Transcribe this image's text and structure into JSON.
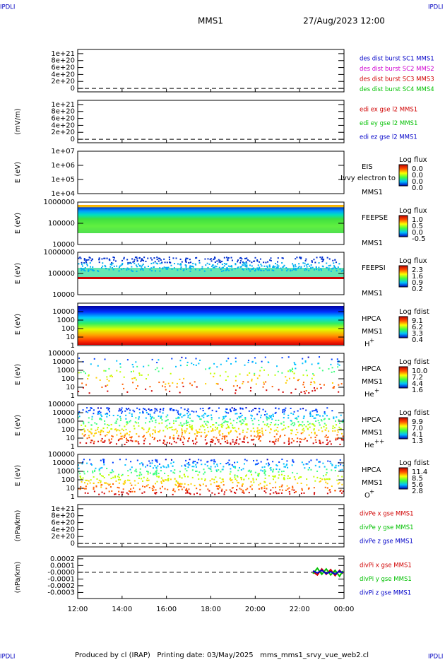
{
  "corner_label": "IPDLI",
  "title": "MMS1",
  "date": "27/Aug/2023 12:00",
  "footer": "Produced by cl (IRAP)   Printing date: 03/May/2025   mms_mms1_srvy_vue_web2.cl",
  "xlim": [
    12,
    24
  ],
  "xticks": [
    {
      "value": 12,
      "label": "12:00"
    },
    {
      "value": 14,
      "label": "14:00"
    },
    {
      "value": 16,
      "label": "16:00"
    },
    {
      "value": 18,
      "label": "18:00"
    },
    {
      "value": 20,
      "label": "20:00"
    },
    {
      "value": 22,
      "label": "22:00"
    },
    {
      "value": 24,
      "label": "00:00"
    }
  ],
  "chart_data": [
    {
      "type": "line",
      "ylim": [
        -1e+20,
        1.12e+21
      ],
      "yticks": [
        {
          "value": 1e+21,
          "label": "1e+21"
        },
        {
          "value": 8e+20,
          "label": "8e+20"
        },
        {
          "value": 6e+20,
          "label": "6e+20"
        },
        {
          "value": 4e+20,
          "label": "4e+20"
        },
        {
          "value": 2e+20,
          "label": "2e+20"
        },
        0
      ],
      "series": [
        {
          "name": "des dist burst SC1 MMS1",
          "color": "#0000c8"
        },
        {
          "name": "des dist burst SC2 MMS2",
          "color": "#d000d0"
        },
        {
          "name": "des dist burst SC3 MMS3",
          "color": "#d00000"
        },
        {
          "name": "des dist burst SC4 MMS4",
          "color": "#00c000"
        }
      ]
    },
    {
      "type": "line",
      "ylabel": "(mV/m)",
      "ylim": [
        -1e+20,
        1.12e+21
      ],
      "yticks": [
        {
          "value": 1e+21,
          "label": "1e+21"
        },
        {
          "value": 8e+20,
          "label": "8e+20"
        },
        {
          "value": 6e+20,
          "label": "6e+20"
        },
        {
          "value": 4e+20,
          "label": "4e+20"
        },
        {
          "value": 2e+20,
          "label": "2e+20"
        },
        0
      ],
      "series": [
        {
          "name": "edi ex gse l2 MMS1",
          "color": "#d00000"
        },
        {
          "name": "edi ey gse l2 MMS1",
          "color": "#00c000"
        },
        {
          "name": "edi ez gse l2 MMS1",
          "color": "#0000c8"
        }
      ]
    },
    {
      "type": "spectrogram",
      "ylabel": "E (eV)",
      "log": true,
      "ylim": [
        10000,
        10000000
      ],
      "yticks": [
        {
          "value": 10000000,
          "label": "1e+07"
        },
        {
          "value": 1000000,
          "label": "1e+06"
        },
        {
          "value": 100000,
          "label": "1e+05"
        },
        {
          "value": 10000,
          "label": "1e+04"
        }
      ],
      "labels": [
        "EIS",
        "MMS1"
      ],
      "note": "Ivvy electron to",
      "colorbar_title": "Log flux",
      "colorbar_labels": [
        "0.0",
        "0.0",
        "0.0",
        "0.0"
      ]
    },
    {
      "type": "spectrogram",
      "ylabel": "E (eV)",
      "log": true,
      "ylim": [
        10000,
        1000000
      ],
      "yticks": [
        1000000,
        100000,
        10000
      ],
      "labels": [
        "FEEPSE",
        "MMS1"
      ],
      "colorbar_title": "Log flux",
      "colorbar_labels": [
        "1.0",
        "0.5",
        "0.0",
        "-0.5"
      ]
    },
    {
      "type": "spectrogram",
      "ylabel": "E (eV)",
      "log": true,
      "ylim": [
        10000,
        1000000
      ],
      "yticks": [
        1000000,
        100000,
        10000
      ],
      "labels": [
        "FEEPSI",
        "MMS1"
      ],
      "colorbar_title": "Log flux",
      "colorbar_labels": [
        "2.3",
        "1.6",
        "0.9",
        "0.2"
      ]
    },
    {
      "type": "spectrogram",
      "ylabel": "E (eV)",
      "log": true,
      "ylim": [
        1,
        100000
      ],
      "yticks": [
        10000,
        1000,
        100,
        10,
        1
      ],
      "labels": [
        "HPCA",
        "MMS1"
      ],
      "species": [
        "H",
        "+"
      ],
      "colorbar_title": "Log fdist",
      "colorbar_labels": [
        "9.1",
        "6.2",
        "3.3",
        "0.4"
      ]
    },
    {
      "type": "spectrogram",
      "ylabel": "E (eV)",
      "log": true,
      "ylim": [
        1,
        100000
      ],
      "yticks": [
        100000,
        10000,
        1000,
        100,
        10,
        1
      ],
      "labels": [
        "HPCA",
        "MMS1"
      ],
      "species": [
        "He",
        "+"
      ],
      "colorbar_title": "Log fdist",
      "colorbar_labels": [
        "10.0",
        "7.2",
        "4.4",
        "1.6"
      ]
    },
    {
      "type": "spectrogram",
      "ylabel": "E (eV)",
      "log": true,
      "ylim": [
        1,
        100000
      ],
      "yticks": [
        100000,
        10000,
        1000,
        100,
        10,
        1
      ],
      "labels": [
        "HPCA",
        "MMS1"
      ],
      "species": [
        "He",
        "++"
      ],
      "colorbar_title": "Log fdist",
      "colorbar_labels": [
        "9.9",
        "7.0",
        "4.1",
        "1.3"
      ]
    },
    {
      "type": "spectrogram",
      "ylabel": "E (eV)",
      "log": true,
      "ylim": [
        1,
        100000
      ],
      "yticks": [
        100000,
        10000,
        1000,
        100,
        10,
        1
      ],
      "labels": [
        "HPCA",
        "MMS1"
      ],
      "species": [
        "O",
        "+"
      ],
      "colorbar_title": "Log fdist",
      "colorbar_labels": [
        "11.4",
        "8.5",
        "5.6",
        "2.8"
      ]
    },
    {
      "type": "line",
      "ylabel": "(nPa/km)",
      "ylim": [
        -1e+20,
        1.12e+21
      ],
      "yticks": [
        {
          "value": 1e+21,
          "label": "1e+21"
        },
        {
          "value": 8e+20,
          "label": "8e+20"
        },
        {
          "value": 6e+20,
          "label": "6e+20"
        },
        {
          "value": 4e+20,
          "label": "4e+20"
        },
        {
          "value": 2e+20,
          "label": "2e+20"
        },
        0
      ],
      "series": [
        {
          "name": "divPe x gse MMS1",
          "color": "#d00000"
        },
        {
          "name": "divPe y gse MMS1",
          "color": "#00c000"
        },
        {
          "name": "divPe z gse MMS1",
          "color": "#0000c8"
        }
      ]
    },
    {
      "type": "line",
      "ylabel": "(nPa/km)",
      "ylim": [
        -0.00039,
        0.00024
      ],
      "yticks": [
        {
          "value": 0.0002,
          "label": "0.0002"
        },
        {
          "value": 0.0001,
          "label": "0.0001"
        },
        {
          "value": 0,
          "label": "-0.0000"
        },
        {
          "value": -0.0001,
          "label": "-0.0001"
        },
        {
          "value": -0.0002,
          "label": "-0.0002"
        },
        {
          "value": -0.0003,
          "label": "-0.0003"
        }
      ],
      "x": [
        22.6,
        22.8,
        23.0,
        23.2,
        23.4,
        23.6,
        23.8,
        23.95
      ],
      "series": [
        {
          "name": "divPi x gse MMS1",
          "color": "#d00000",
          "values": [
            1e-05,
            -4e-05,
            5e-05,
            -3e-05,
            4e-05,
            -5e-05,
            3e-05,
            -2e-05
          ]
        },
        {
          "name": "divPi y gse MMS1",
          "color": "#00c000",
          "values": [
            -2e-05,
            6e-05,
            -3e-05,
            5e-05,
            -4e-05,
            3e-05,
            -6e-05,
            2e-05
          ]
        },
        {
          "name": "divPi z gse MMS1",
          "color": "#0000c8",
          "values": [
            2e-05,
            -1e-05,
            3e-05,
            -2e-05,
            1e-05,
            -3e-05,
            2e-05,
            -1e-05
          ]
        }
      ]
    }
  ]
}
